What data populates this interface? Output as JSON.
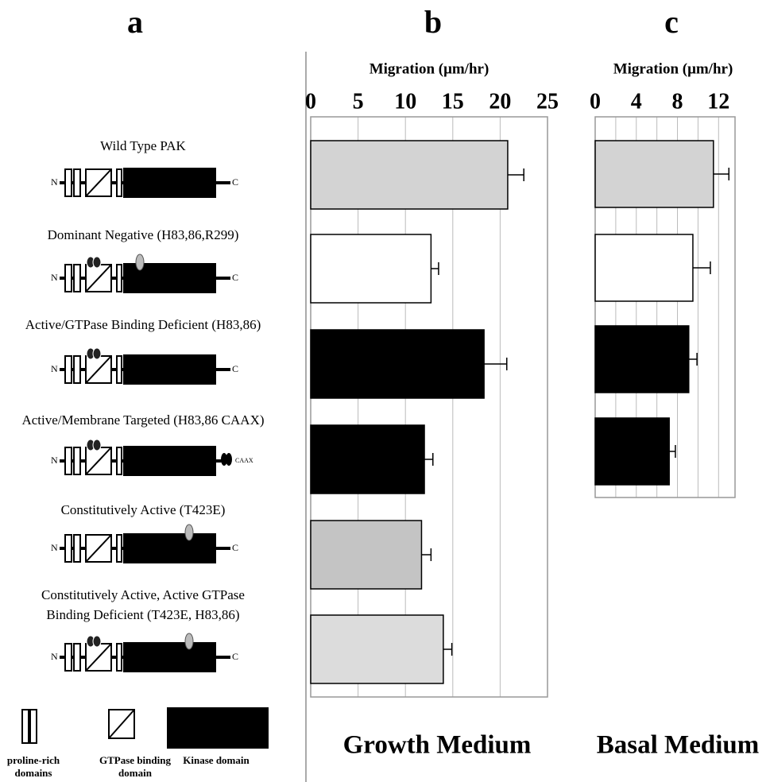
{
  "diagram": {
    "panel": "a",
    "constructs": [
      {
        "label": [
          "Wild Type PAK"
        ],
        "n": "N",
        "c": "C"
      },
      {
        "label": [
          "Dominant Negative (H83,86,R299)"
        ],
        "n": "N",
        "c": "C"
      },
      {
        "label": [
          "Active/GTPase Binding Deficient (H83,86)"
        ],
        "n": "N",
        "c": "C"
      },
      {
        "label": [
          "Active/Membrane Targeted (H83,86 CAAX)"
        ],
        "n": "N",
        "c": "CAAX"
      },
      {
        "label": [
          "Constitutively Active (T423E)"
        ],
        "n": "N",
        "c": "C"
      },
      {
        "label": [
          "Constitutively Active, Active GTPase",
          "Binding Deficient (T423E, H83,86)"
        ],
        "n": "N",
        "c": "C"
      }
    ],
    "legend": [
      [
        "proline-rich",
        "domains"
      ],
      [
        "GTPase binding",
        "domain"
      ],
      [
        "Kinase domain"
      ]
    ]
  },
  "chart_data": [
    {
      "type": "bar",
      "panel": "b",
      "xlabel": "Migration (μm/hr)",
      "caption": "Growth Medium",
      "values": [
        20.8,
        12.7,
        18.3,
        12.0,
        11.7,
        14.0
      ],
      "errors": [
        1.7,
        0.8,
        2.4,
        0.9,
        1.0,
        0.9
      ],
      "colors": [
        "#d3d3d3",
        "#ffffff",
        "#000000",
        "#000000",
        "#c4c4c4",
        "#dcdcdc"
      ],
      "xlim": [
        0,
        25
      ],
      "xticks": [
        0,
        5,
        10,
        15,
        20,
        25
      ],
      "grid": true
    },
    {
      "type": "bar",
      "panel": "c",
      "xlabel": "Migration (μm/hr)",
      "caption": "Basal Medium",
      "values": [
        11.5,
        9.5,
        9.1,
        7.2
      ],
      "errors": [
        1.5,
        1.7,
        0.8,
        0.6
      ],
      "colors": [
        "#d3d3d3",
        "#ffffff",
        "#000000",
        "#000000"
      ],
      "xlim": [
        0,
        13.6
      ],
      "xticks": [
        0,
        4,
        8,
        12
      ],
      "minor_xticks": [
        2,
        6,
        10
      ],
      "grid": true
    }
  ]
}
